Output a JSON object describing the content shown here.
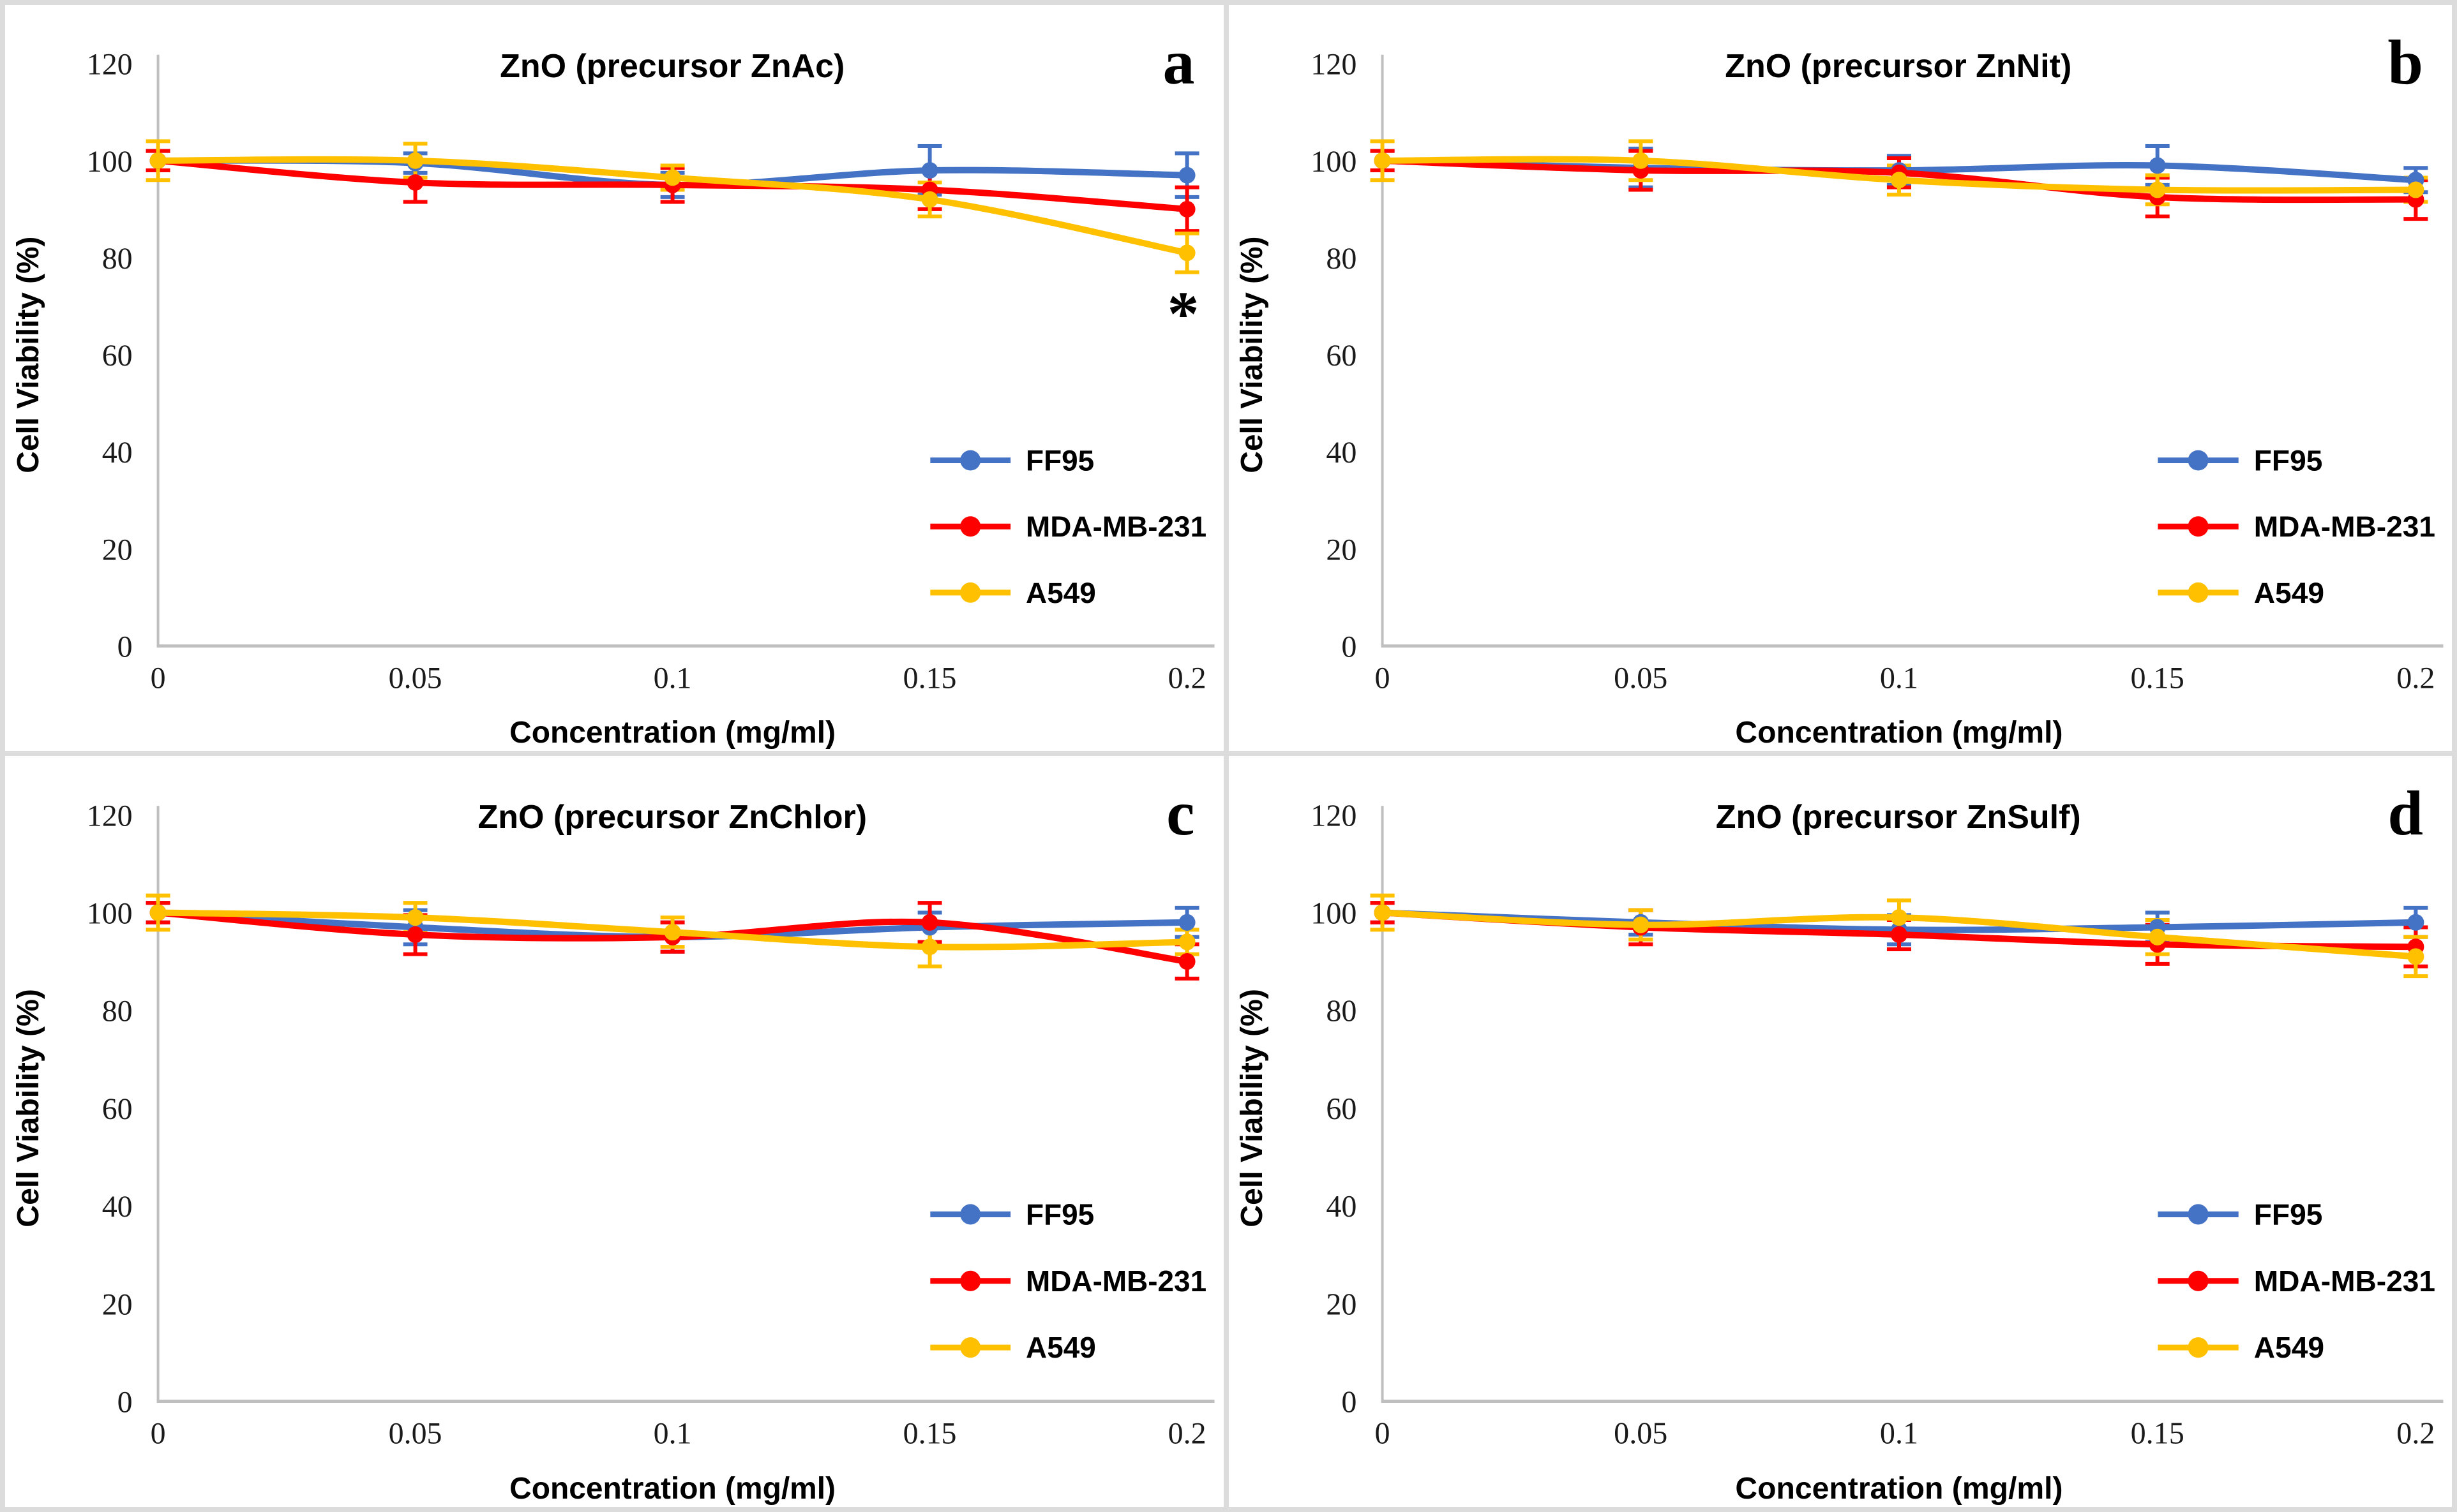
{
  "figure": {
    "background": "#FFFFFF",
    "border_color": "#DCDCDC",
    "axis_color": "#BFBFBF",
    "text_color": "#000000"
  },
  "axes": {
    "x_label": "Concentration (mg/ml)",
    "y_label": "Cell Viability (%)",
    "x_tick_labels": [
      "0",
      "0.05",
      "0.1",
      "0.15",
      "0.2"
    ],
    "y_tick_labels": [
      "0",
      "20",
      "40",
      "60",
      "80",
      "100",
      "120"
    ],
    "x_ticks": [
      0,
      0.05,
      0.1,
      0.15,
      0.2
    ],
    "y_ticks": [
      0,
      20,
      40,
      60,
      80,
      100,
      120
    ]
  },
  "legend": {
    "position": "right-center",
    "items": [
      {
        "label": "FF95",
        "color": "#4472C4"
      },
      {
        "label": "MDA-MB-231",
        "color": "#FF0000"
      },
      {
        "label": "A549",
        "color": "#FFC000"
      }
    ]
  },
  "chart_data": [
    {
      "type": "line",
      "panel_letter": "a",
      "title": "ZnO (precursor ZnAc)",
      "xlabel": "Concentration (mg/ml)",
      "ylabel": "Cell Viability (%)",
      "x": [
        0,
        0.05,
        0.1,
        0.15,
        0.2
      ],
      "xlim": [
        0,
        0.2
      ],
      "ylim": [
        0,
        120
      ],
      "grid": false,
      "legend_position": "right-center",
      "series": [
        {
          "name": "FF95",
          "color": "#4472C4",
          "values": [
            100,
            99.5,
            95,
            98,
            97
          ],
          "errors": [
            2,
            2,
            2.5,
            5,
            4.5
          ]
        },
        {
          "name": "MDA-MB-231",
          "color": "#FF0000",
          "values": [
            100,
            95.5,
            95,
            94,
            90
          ],
          "errors": [
            2,
            4,
            3.5,
            4,
            4.5
          ]
        },
        {
          "name": "A549",
          "color": "#FFC000",
          "values": [
            100,
            100,
            96.5,
            92,
            81
          ],
          "errors": [
            4,
            3.5,
            2.5,
            3.5,
            4
          ]
        }
      ],
      "annotations": [
        {
          "text": "*",
          "x": 0.2,
          "y": 70
        }
      ]
    },
    {
      "type": "line",
      "panel_letter": "b",
      "title": "ZnO (precursor ZnNit)",
      "xlabel": "Concentration (mg/ml)",
      "ylabel": "Cell Viability (%)",
      "x": [
        0,
        0.05,
        0.1,
        0.15,
        0.2
      ],
      "xlim": [
        0,
        0.2
      ],
      "ylim": [
        0,
        120
      ],
      "grid": false,
      "legend_position": "right-center",
      "series": [
        {
          "name": "FF95",
          "color": "#4472C4",
          "values": [
            100,
            98.5,
            98,
            99,
            96
          ],
          "errors": [
            2,
            4,
            3,
            4,
            2.5
          ]
        },
        {
          "name": "MDA-MB-231",
          "color": "#FF0000",
          "values": [
            100,
            98,
            97.5,
            92.5,
            92
          ],
          "errors": [
            2,
            4,
            3,
            4,
            4
          ]
        },
        {
          "name": "A549",
          "color": "#FFC000",
          "values": [
            100,
            100,
            96,
            94,
            94
          ],
          "errors": [
            4,
            4,
            3,
            3,
            2.5
          ]
        }
      ],
      "annotations": []
    },
    {
      "type": "line",
      "panel_letter": "c",
      "title": "ZnO (precursor ZnChlor)",
      "xlabel": "Concentration (mg/ml)",
      "ylabel": "Cell Viability (%)",
      "x": [
        0,
        0.05,
        0.1,
        0.15,
        0.2
      ],
      "xlim": [
        0,
        0.2
      ],
      "ylim": [
        0,
        120
      ],
      "grid": false,
      "legend_position": "right-center",
      "series": [
        {
          "name": "FF95",
          "color": "#4472C4",
          "values": [
            100,
            97,
            95,
            97,
            98
          ],
          "errors": [
            2,
            3.5,
            3,
            3,
            3
          ]
        },
        {
          "name": "MDA-MB-231",
          "color": "#FF0000",
          "values": [
            100,
            95.5,
            95,
            98,
            90
          ],
          "errors": [
            2,
            4,
            3,
            4,
            3.5
          ]
        },
        {
          "name": "A549",
          "color": "#FFC000",
          "values": [
            100,
            99,
            96,
            93,
            94
          ],
          "errors": [
            3.5,
            3,
            3,
            4,
            2.5
          ]
        }
      ],
      "annotations": []
    },
    {
      "type": "line",
      "panel_letter": "d",
      "title": "ZnO (precursor ZnSulf)",
      "xlabel": "Concentration (mg/ml)",
      "ylabel": "Cell Viability (%)",
      "x": [
        0,
        0.05,
        0.1,
        0.15,
        0.2
      ],
      "xlim": [
        0,
        0.2
      ],
      "ylim": [
        0,
        120
      ],
      "grid": false,
      "legend_position": "right-center",
      "series": [
        {
          "name": "FF95",
          "color": "#4472C4",
          "values": [
            100,
            98,
            96.5,
            97,
            98
          ],
          "errors": [
            2,
            2.5,
            3,
            3,
            3
          ]
        },
        {
          "name": "MDA-MB-231",
          "color": "#FF0000",
          "values": [
            100,
            97,
            95.5,
            93.5,
            93
          ],
          "errors": [
            2,
            3.5,
            3,
            4,
            4
          ]
        },
        {
          "name": "A549",
          "color": "#FFC000",
          "values": [
            100,
            97.5,
            99,
            95,
            91
          ],
          "errors": [
            3.5,
            3,
            3.5,
            3.5,
            4
          ]
        }
      ],
      "annotations": []
    }
  ]
}
